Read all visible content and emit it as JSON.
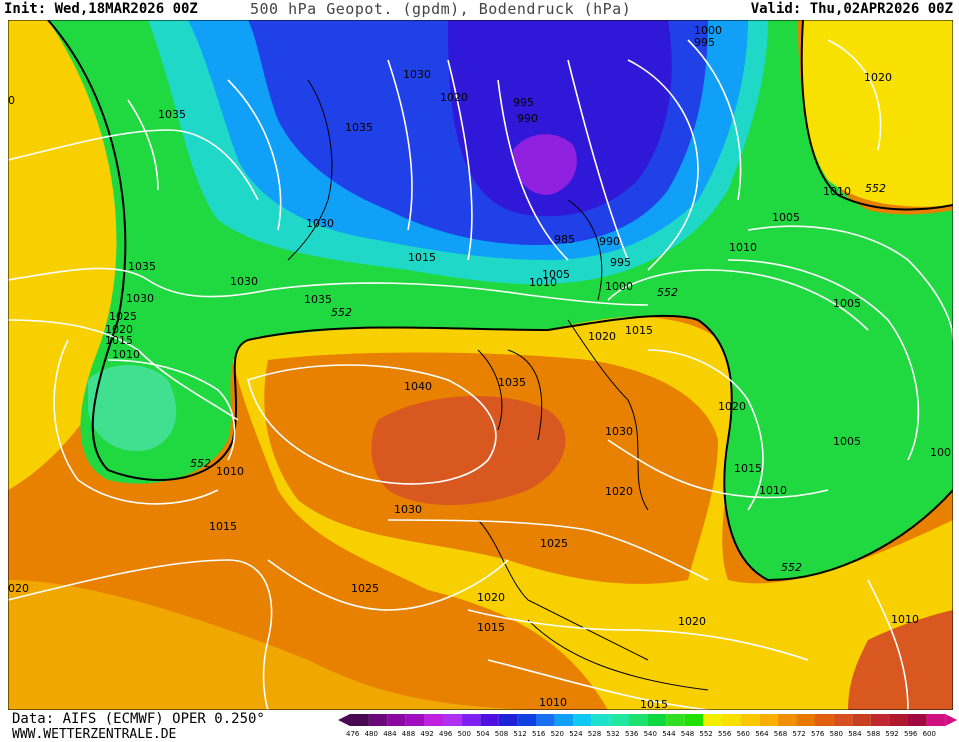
{
  "header": {
    "init": "Init: Wed,18MAR2026 00Z",
    "title": "500 hPa Geopot. (gpdm), Bodendruck (hPa)",
    "valid": "Valid: Thu,02APR2026 00Z"
  },
  "footer": {
    "source": "Data: AIFS (ECMWF) OPER 0.250°",
    "site": "WWW.WETTERZENTRALE.DE"
  },
  "legend": {
    "labels": [
      "476",
      "480",
      "484",
      "488",
      "492",
      "496",
      "500",
      "504",
      "508",
      "512",
      "516",
      "520",
      "524",
      "528",
      "532",
      "536",
      "540",
      "544",
      "548",
      "552",
      "556",
      "560",
      "564",
      "568",
      "572",
      "576",
      "580",
      "584",
      "588",
      "592",
      "596",
      "600"
    ],
    "colors": [
      "#4a0a52",
      "#6a0a78",
      "#8a0aa0",
      "#a010c0",
      "#c020e0",
      "#b030f0",
      "#8020f0",
      "#5010e0",
      "#2020d8",
      "#1040e0",
      "#1870f0",
      "#10a0f8",
      "#10c8f0",
      "#20e0d0",
      "#20e8a0",
      "#20e070",
      "#10d840",
      "#30e020",
      "#20e000",
      "#f0f000",
      "#f8e000",
      "#f8c800",
      "#f8b000",
      "#f09000",
      "#e87800",
      "#e06010",
      "#d85020",
      "#c84020",
      "#c02830",
      "#b01830",
      "#a00a40",
      "#d01080"
    ]
  },
  "map": {
    "fields": {
      "green": "#20d840",
      "cyan": "#20d8c8",
      "lightblue": "#10a0f8",
      "blue": "#2040e8",
      "darkblue": "#3018d8",
      "purple": "#9020e0",
      "yellow": "#f8e000",
      "lightorange": "#f0b000",
      "orange": "#e88000",
      "darkorange": "#d85820"
    },
    "isobar_labels": [
      "1035",
      "1030",
      "1020",
      "1035",
      "1030",
      "995",
      "990",
      "1000",
      "995",
      "1020",
      "1010",
      "552",
      "1005",
      "1010",
      "1035",
      "1030",
      "985",
      "990",
      "995",
      "1005",
      "1010",
      "1000",
      "552",
      "1035",
      "552",
      "1015",
      "1030",
      "1015",
      "1025",
      "1020",
      "1015",
      "1010",
      "1020",
      "1005",
      "1040",
      "1035",
      "1030",
      "1020",
      "1005",
      "1010",
      "552",
      "1030",
      "1015",
      "1010",
      "1015",
      "1020",
      "1025",
      "1025",
      "1020",
      "1020",
      "1015",
      "552",
      "1010",
      "1010",
      "1015",
      "020",
      "0",
      "100"
    ],
    "height_label": "552"
  }
}
